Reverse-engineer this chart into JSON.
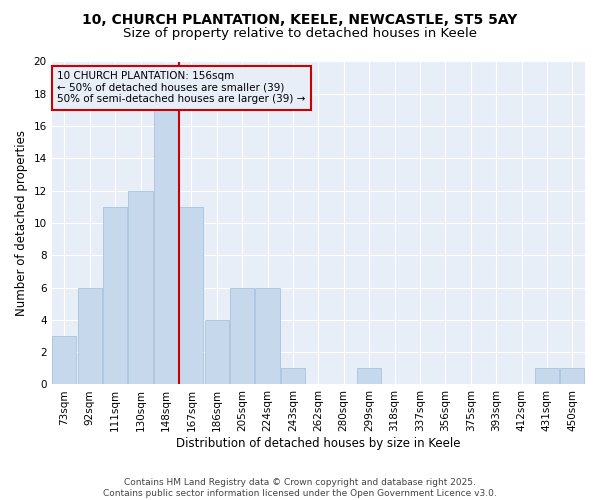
{
  "title": "10, CHURCH PLANTATION, KEELE, NEWCASTLE, ST5 5AY",
  "subtitle": "Size of property relative to detached houses in Keele",
  "xlabel": "Distribution of detached houses by size in Keele",
  "ylabel": "Number of detached properties",
  "categories": [
    "73sqm",
    "92sqm",
    "111sqm",
    "130sqm",
    "148sqm",
    "167sqm",
    "186sqm",
    "205sqm",
    "224sqm",
    "243sqm",
    "262sqm",
    "280sqm",
    "299sqm",
    "318sqm",
    "337sqm",
    "356sqm",
    "375sqm",
    "393sqm",
    "412sqm",
    "431sqm",
    "450sqm"
  ],
  "values": [
    3,
    6,
    11,
    12,
    17,
    11,
    4,
    6,
    6,
    1,
    0,
    0,
    1,
    0,
    0,
    0,
    0,
    0,
    0,
    1,
    1
  ],
  "bar_color": "#c5d8ec",
  "bar_edgecolor": "#a8c4dc",
  "vline_x_idx": 4,
  "vline_color": "#cc0000",
  "annotation_text": "10 CHURCH PLANTATION: 156sqm\n← 50% of detached houses are smaller (39)\n50% of semi-detached houses are larger (39) →",
  "annotation_box_edgecolor": "#cc0000",
  "ylim": [
    0,
    20
  ],
  "yticks": [
    0,
    2,
    4,
    6,
    8,
    10,
    12,
    14,
    16,
    18,
    20
  ],
  "footer": "Contains HM Land Registry data © Crown copyright and database right 2025.\nContains public sector information licensed under the Open Government Licence v3.0.",
  "fig_bg_color": "#ffffff",
  "plot_bg_color": "#e8eef8",
  "grid_color": "#ffffff",
  "title_fontsize": 10,
  "subtitle_fontsize": 9.5,
  "axis_label_fontsize": 8.5,
  "tick_fontsize": 7.5,
  "footer_fontsize": 6.5,
  "annotation_fontsize": 7.5
}
